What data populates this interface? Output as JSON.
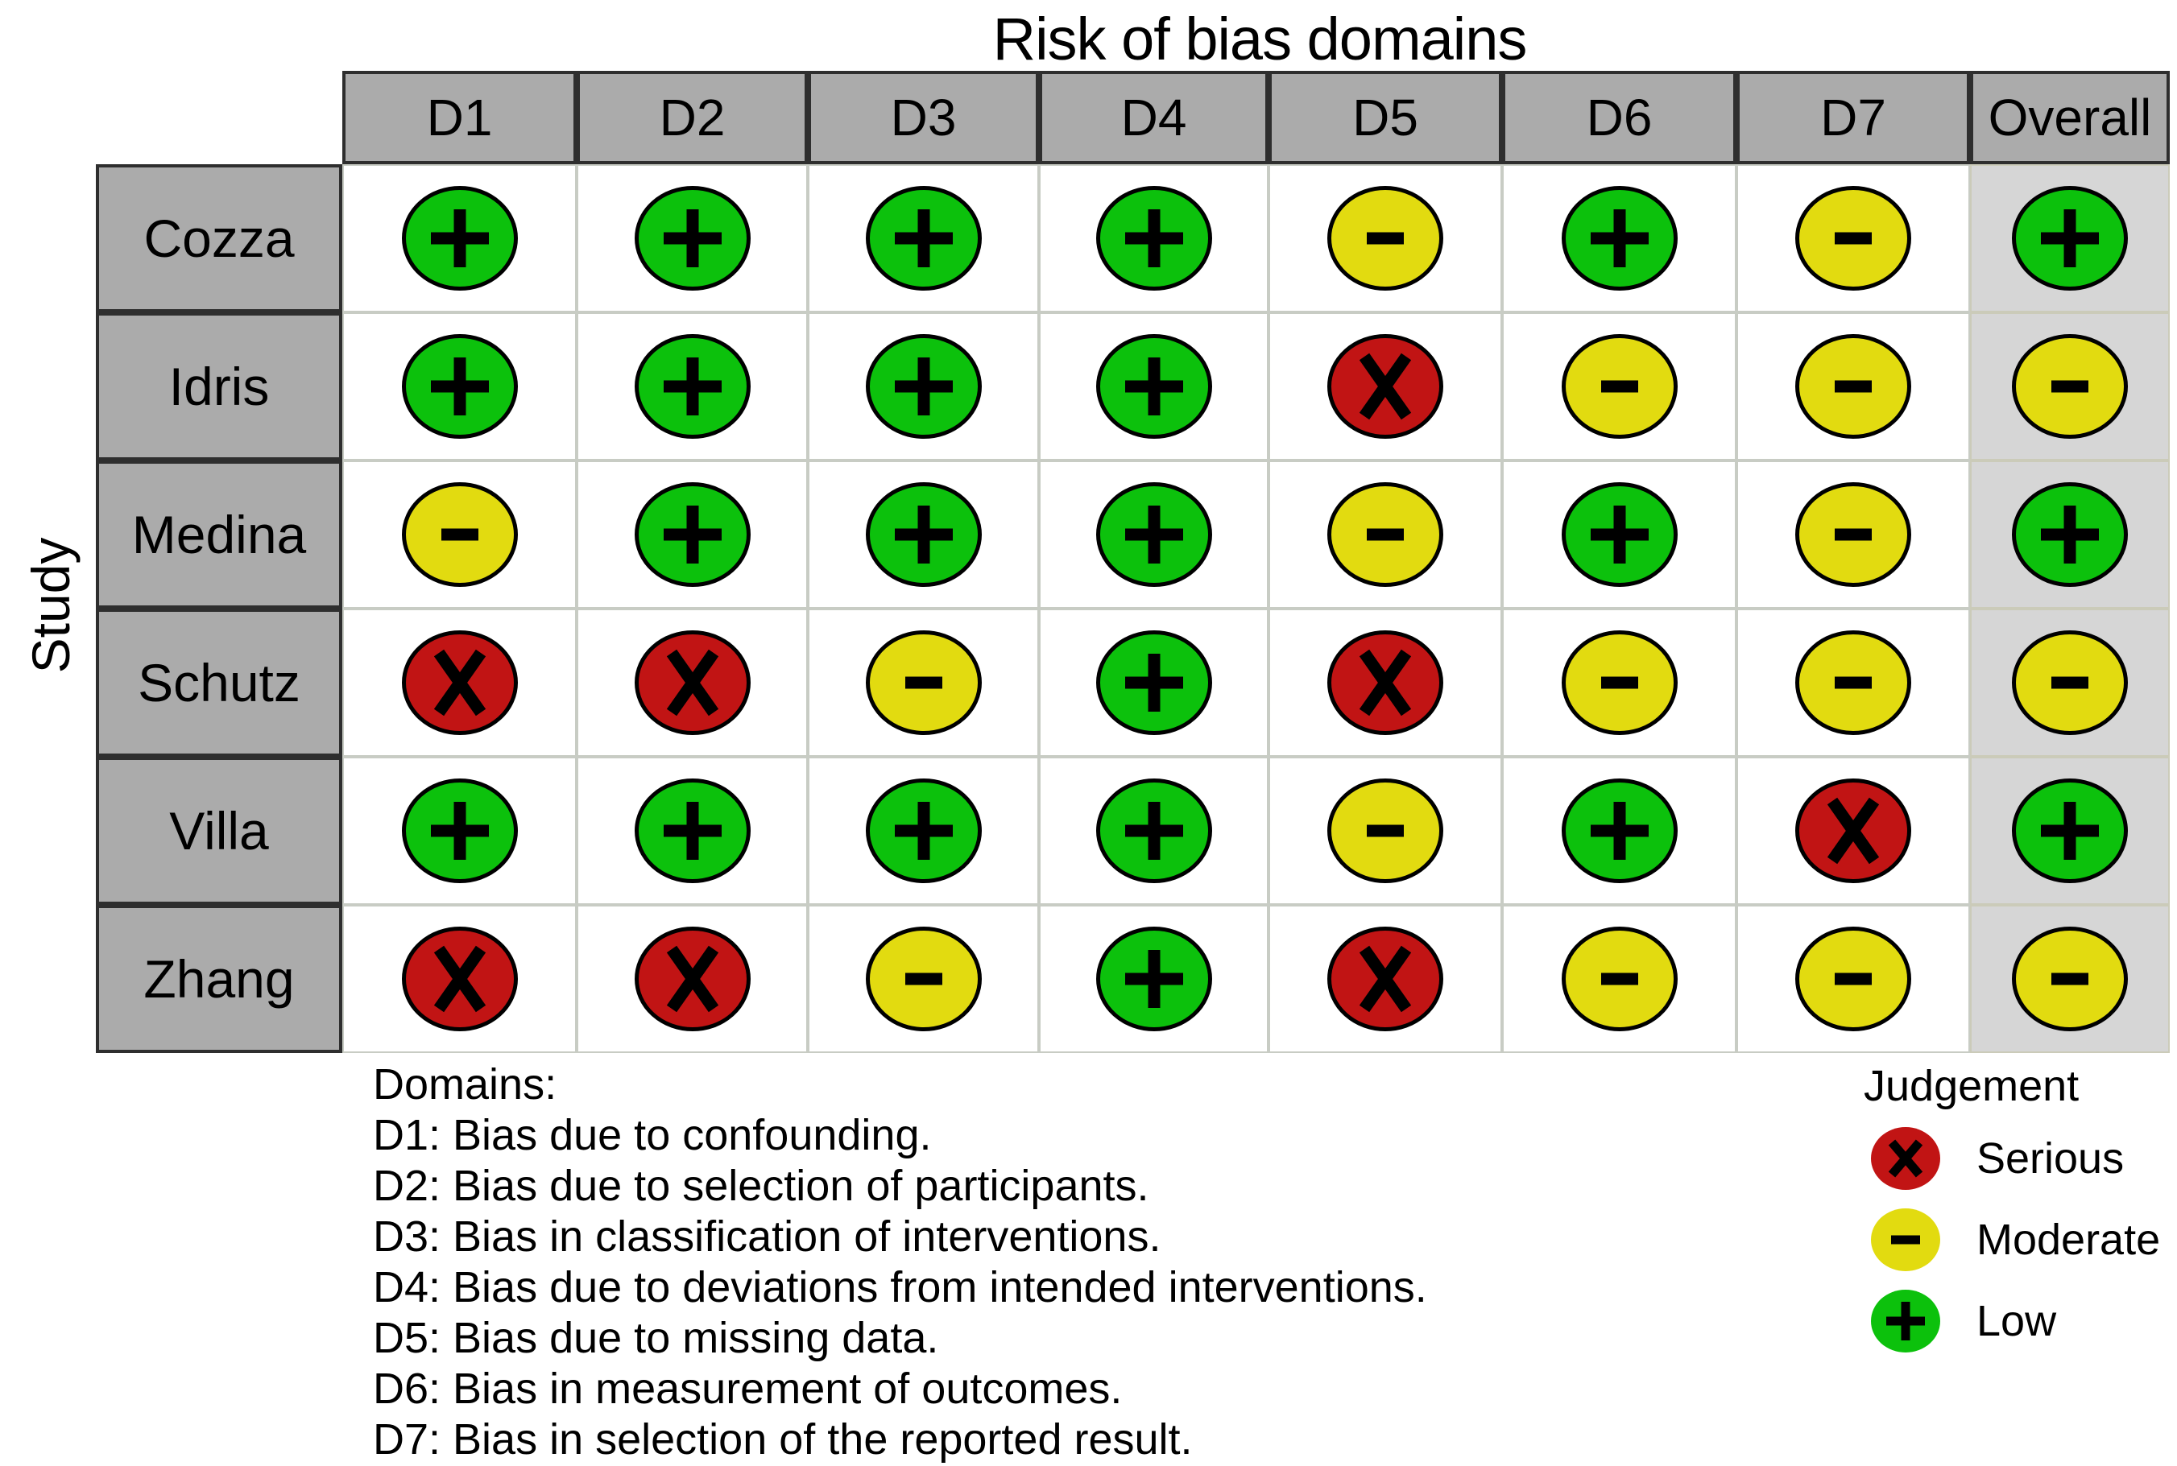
{
  "title": "Risk of bias domains",
  "y_axis_label": "Study",
  "chart_data": {
    "type": "table",
    "title": "Risk of bias domains",
    "x_categories": [
      "D1",
      "D2",
      "D3",
      "D4",
      "D5",
      "D6",
      "D7",
      "Overall"
    ],
    "y_categories": [
      "Cozza",
      "Idris",
      "Medina",
      "Schutz",
      "Villa",
      "Zhang"
    ],
    "y_axis_label": "Study",
    "values": [
      [
        "low",
        "low",
        "low",
        "low",
        "moderate",
        "low",
        "moderate",
        "low"
      ],
      [
        "low",
        "low",
        "low",
        "low",
        "serious",
        "moderate",
        "moderate",
        "moderate"
      ],
      [
        "moderate",
        "low",
        "low",
        "low",
        "moderate",
        "low",
        "moderate",
        "low"
      ],
      [
        "serious",
        "serious",
        "moderate",
        "low",
        "serious",
        "moderate",
        "moderate",
        "moderate"
      ],
      [
        "low",
        "low",
        "low",
        "low",
        "moderate",
        "low",
        "serious",
        "low"
      ],
      [
        "serious",
        "serious",
        "moderate",
        "low",
        "serious",
        "moderate",
        "moderate",
        "moderate"
      ]
    ],
    "symbols": {
      "low": "+",
      "moderate": "-",
      "serious": "x"
    },
    "legend_position": "bottom-right",
    "grid": true
  },
  "legend": {
    "title": "Judgement",
    "items": [
      {
        "code": "serious",
        "label": "Serious",
        "symbol": "x"
      },
      {
        "code": "moderate",
        "label": "Moderate",
        "symbol": "-"
      },
      {
        "code": "low",
        "label": "Low",
        "symbol": "+"
      }
    ]
  },
  "domains_note": {
    "heading": "Domains:",
    "lines": [
      "D1: Bias due to confounding.",
      "D2: Bias due to selection of participants.",
      "D3: Bias in classification of interventions.",
      "D4: Bias due to deviations from intended interventions.",
      "D5: Bias due to missing data.",
      "D6: Bias in measurement of outcomes.",
      "D7: Bias in selection of the reported result."
    ]
  },
  "colors": {
    "low": "#0cc10c",
    "moderate": "#e2db10",
    "serious": "#c11414",
    "glyph": "#000000",
    "circle_stroke": "#000000",
    "header_bg": "#ababab",
    "overall_col_bg": "#d6d6d6",
    "dark_border": "#2e2e2e",
    "light_border": "#c8ccc4",
    "text": "#000000",
    "background": "#ffffff"
  }
}
